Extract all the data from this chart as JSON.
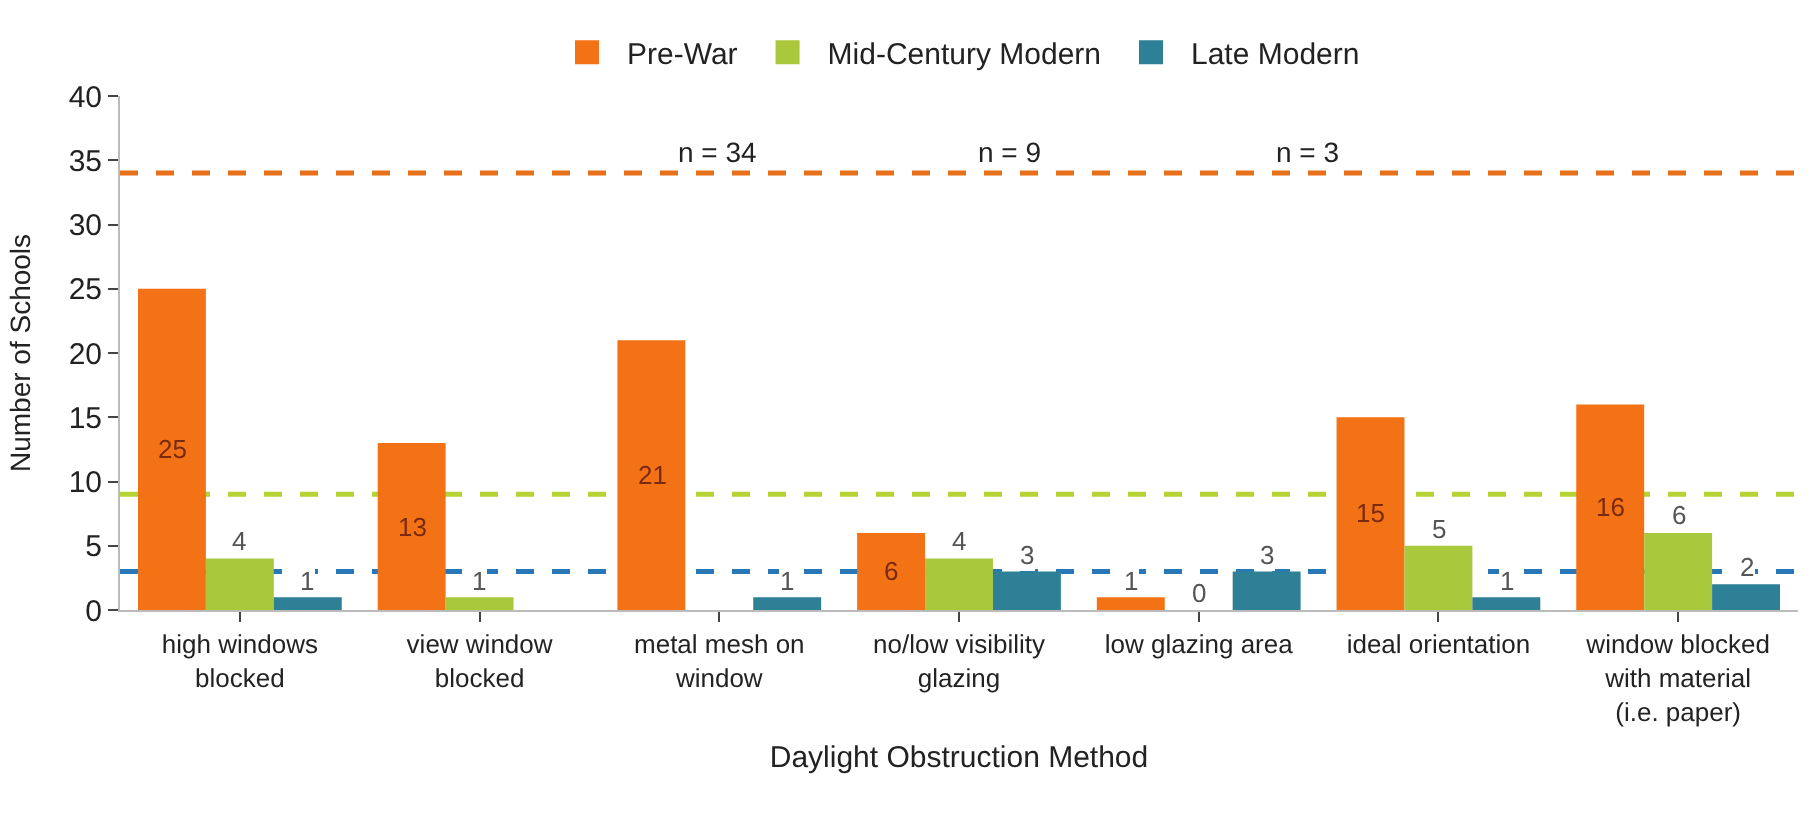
{
  "chart_data": {
    "type": "bar",
    "xlabel": "Daylight Obstruction Method",
    "ylabel": "Number of Schools",
    "categories": [
      "high windows blocked",
      "view window blocked",
      "metal mesh on window",
      "no/low visibility glazing",
      "low glazing area",
      "ideal orientation",
      "window blocked with material (i.e. paper)"
    ],
    "series": [
      {
        "name": "Pre-War",
        "color": "#f47216",
        "values": [
          25,
          13,
          21,
          6,
          1,
          15,
          16
        ],
        "value_labels": [
          "25",
          "13",
          "21",
          "6",
          "1",
          "15",
          "16"
        ]
      },
      {
        "name": "Mid-Century Modern",
        "color": "#a9c83c",
        "values": [
          4,
          1,
          0,
          4,
          0,
          5,
          6
        ],
        "value_labels": [
          "4",
          "1",
          null,
          "4",
          "0",
          "5",
          "6"
        ]
      },
      {
        "name": "Late Modern",
        "color": "#2e8097",
        "values": [
          1,
          0,
          1,
          3,
          3,
          1,
          2
        ],
        "value_labels": [
          "1",
          null,
          "1",
          "3",
          "3",
          "1",
          "2"
        ]
      }
    ],
    "ylim": [
      0,
      40
    ],
    "yticks": [
      0,
      5,
      10,
      15,
      20,
      25,
      30,
      35,
      40
    ],
    "ref_lines": [
      {
        "axis": "y",
        "value": 34,
        "color": "#e8701a",
        "line_style": "dashed"
      },
      {
        "axis": "y",
        "value": 9,
        "color": "#b5d334",
        "line_style": "dashed"
      },
      {
        "axis": "y",
        "value": 3,
        "color": "#2878b8",
        "line_style": "dashed"
      }
    ],
    "annotations": [
      "n = 34",
      "n = 9",
      "n = 3"
    ],
    "grid": false,
    "legend": "top"
  }
}
